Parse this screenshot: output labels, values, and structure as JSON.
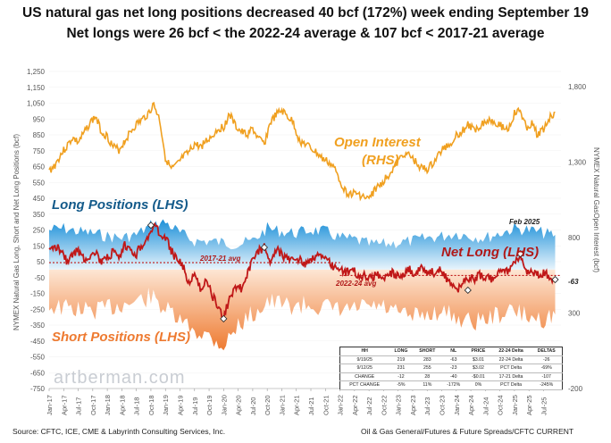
{
  "title": "US natural gas net long positions decreased 40 bcf (172%) week ending September 19",
  "subtitle": "Net longs were 26 bcf < the 2022-24 average & 107 bcf < 2017-21 average",
  "footer": {
    "source": "Source: CFTC, ICE, CME & Labyrinth Consulting Services, Inc.",
    "credit": "Oil & Gas General/Futures & Future Spreads/CFTC CURRENT",
    "watermark": "artberman.com"
  },
  "chart_data": {
    "type": "area",
    "ylabel": "NYMEX Natural Gas Long, Short and Net Long Positions (bcf)",
    "ylabel_right": "NYMEX Natural GasOpen Interest (bcf)",
    "ylim": [
      -750,
      1250
    ],
    "ylim_right": [
      -200,
      1900
    ],
    "yticks": [
      "1,250",
      "1,150",
      "1,050",
      "950",
      "850",
      "750",
      "650",
      "550",
      "450",
      "350",
      "250",
      "150",
      "50",
      "-50",
      "-150",
      "-250",
      "-350",
      "-450",
      "-550",
      "-650",
      "-750"
    ],
    "yticks_right": [
      "1,800",
      "1,300",
      "800",
      "300",
      "-200"
    ],
    "xticks": [
      "Jan-17",
      "Apr-17",
      "Jul-17",
      "Oct-17",
      "Jan-18",
      "Apr-18",
      "Jul-18",
      "Oct-18",
      "Jan-19",
      "Apr-19",
      "Jul-19",
      "Oct-19",
      "Jan-20",
      "Apr-20",
      "Jul-20",
      "Oct-20",
      "Jan-21",
      "Apr-21",
      "Jul-21",
      "Oct-21",
      "Jan-22",
      "Apr-22",
      "Jul-22",
      "Oct-22",
      "Jan-23",
      "Apr-23",
      "Jul-23",
      "Oct-23",
      "Jan-24",
      "Apr-24",
      "Jul-24",
      "Oct-24",
      "Jan-25",
      "Apr-25",
      "Jul-25"
    ],
    "annotations": {
      "open_interest": "Open Interest",
      "rhs": "(RHS)",
      "long_positions": "Long Positions (LHS)",
      "short_positions": "Short Positions (LHS)",
      "net_long": "Net Long (LHS)",
      "avg_2017_21": "2017-21 avg",
      "avg_2022_24": "2022-24 avg",
      "feb_2025": "Feb 2025",
      "last_value": "-63"
    },
    "avg_2017_21_value": 44,
    "avg_2022_24_value": -37,
    "series": [
      {
        "name": "Open Interest",
        "axis": "right",
        "color": "#f0a020",
        "x": [
          2017.0,
          2017.1,
          2017.2,
          2017.3,
          2017.4,
          2017.5,
          2017.6,
          2017.7,
          2017.8,
          2017.9,
          2018.0,
          2018.1,
          2018.2,
          2018.3,
          2018.4,
          2018.5,
          2018.6,
          2018.7,
          2018.8,
          2018.9,
          2019.0,
          2019.1,
          2019.2,
          2019.3,
          2019.4,
          2019.5,
          2019.6,
          2019.7,
          2019.8,
          2019.9,
          2020.0,
          2020.1,
          2020.2,
          2020.3,
          2020.4,
          2020.5,
          2020.6,
          2020.7,
          2020.8,
          2020.9,
          2021.0,
          2021.1,
          2021.2,
          2021.3,
          2021.4,
          2021.5,
          2021.6,
          2021.7,
          2021.8,
          2021.9,
          2022.0,
          2022.1,
          2022.2,
          2022.3,
          2022.4,
          2022.5,
          2022.6,
          2022.7,
          2022.8,
          2022.9,
          2023.0,
          2023.1,
          2023.2,
          2023.3,
          2023.4,
          2023.5,
          2023.6,
          2023.7,
          2023.8,
          2023.9,
          2024.0,
          2024.1,
          2024.2,
          2024.3,
          2024.4,
          2024.5,
          2024.6,
          2024.7,
          2024.8,
          2024.9,
          2025.0,
          2025.1,
          2025.2,
          2025.3,
          2025.4,
          2025.5,
          2025.6,
          2025.7
        ],
        "values": [
          1240,
          1280,
          1350,
          1400,
          1460,
          1430,
          1490,
          1560,
          1600,
          1500,
          1470,
          1400,
          1380,
          1440,
          1500,
          1550,
          1580,
          1620,
          1680,
          1580,
          1330,
          1250,
          1280,
          1330,
          1360,
          1420,
          1400,
          1440,
          1470,
          1520,
          1530,
          1620,
          1540,
          1500,
          1480,
          1520,
          1450,
          1420,
          1560,
          1610,
          1640,
          1600,
          1560,
          1440,
          1420,
          1390,
          1360,
          1320,
          1300,
          1260,
          1180,
          1100,
          1090,
          1090,
          1070,
          1050,
          1120,
          1150,
          1200,
          1250,
          1300,
          1360,
          1340,
          1300,
          1260,
          1250,
          1290,
          1350,
          1400,
          1420,
          1480,
          1500,
          1550,
          1510,
          1540,
          1570,
          1580,
          1560,
          1530,
          1520,
          1620,
          1640,
          1530,
          1550,
          1480,
          1520,
          1590,
          1630
        ]
      },
      {
        "name": "Long Positions",
        "axis": "left",
        "color": "#3aa0dc",
        "x": [
          2017.0,
          2017.25,
          2017.5,
          2017.75,
          2018.0,
          2018.25,
          2018.5,
          2018.75,
          2019.0,
          2019.25,
          2019.5,
          2019.75,
          2020.0,
          2020.25,
          2020.5,
          2020.75,
          2021.0,
          2021.25,
          2021.5,
          2021.75,
          2022.0,
          2022.25,
          2022.5,
          2022.75,
          2023.0,
          2023.25,
          2023.5,
          2023.75,
          2024.0,
          2024.25,
          2024.5,
          2024.75,
          2025.0,
          2025.25,
          2025.5,
          2025.7
        ],
        "values": [
          250,
          260,
          240,
          230,
          210,
          200,
          220,
          280,
          300,
          230,
          180,
          180,
          170,
          160,
          180,
          260,
          240,
          230,
          250,
          240,
          200,
          190,
          160,
          160,
          170,
          180,
          200,
          210,
          230,
          210,
          200,
          230,
          260,
          250,
          230,
          219
        ]
      },
      {
        "name": "Short Positions",
        "axis": "left",
        "color": "#f08040",
        "x": [
          2017.0,
          2017.25,
          2017.5,
          2017.75,
          2018.0,
          2018.25,
          2018.5,
          2018.75,
          2019.0,
          2019.25,
          2019.5,
          2019.75,
          2020.0,
          2020.25,
          2020.5,
          2020.75,
          2021.0,
          2021.25,
          2021.5,
          2021.75,
          2022.0,
          2022.25,
          2022.5,
          2022.75,
          2023.0,
          2023.25,
          2023.5,
          2023.75,
          2024.0,
          2024.25,
          2024.5,
          2024.75,
          2025.0,
          2025.25,
          2025.5,
          2025.7
        ],
        "values": [
          -230,
          -240,
          -250,
          -260,
          -240,
          -220,
          -200,
          -170,
          -250,
          -330,
          -380,
          -420,
          -480,
          -350,
          -280,
          -200,
          -220,
          -230,
          -220,
          -240,
          -260,
          -250,
          -230,
          -240,
          -280,
          -300,
          -280,
          -260,
          -300,
          -330,
          -310,
          -280,
          -260,
          -300,
          -310,
          -283
        ]
      },
      {
        "name": "Net Long",
        "axis": "left",
        "color": "#c01818",
        "x": [
          2017.0,
          2017.1,
          2017.2,
          2017.3,
          2017.4,
          2017.5,
          2017.6,
          2017.7,
          2017.8,
          2017.9,
          2018.0,
          2018.1,
          2018.2,
          2018.3,
          2018.4,
          2018.5,
          2018.6,
          2018.7,
          2018.8,
          2018.9,
          2019.0,
          2019.1,
          2019.2,
          2019.3,
          2019.4,
          2019.5,
          2019.6,
          2019.7,
          2019.8,
          2019.9,
          2020.0,
          2020.1,
          2020.2,
          2020.3,
          2020.4,
          2020.5,
          2020.6,
          2020.7,
          2020.8,
          2020.9,
          2021.0,
          2021.1,
          2021.2,
          2021.3,
          2021.4,
          2021.5,
          2021.6,
          2021.7,
          2021.8,
          2021.9,
          2022.0,
          2022.1,
          2022.2,
          2022.3,
          2022.4,
          2022.5,
          2022.6,
          2022.7,
          2022.8,
          2022.9,
          2023.0,
          2023.1,
          2023.2,
          2023.3,
          2023.4,
          2023.5,
          2023.6,
          2023.7,
          2023.8,
          2023.9,
          2024.0,
          2024.1,
          2024.2,
          2024.3,
          2024.4,
          2024.5,
          2024.6,
          2024.7,
          2024.8,
          2024.9,
          2025.0,
          2025.1,
          2025.2,
          2025.3,
          2025.4,
          2025.5,
          2025.6,
          2025.7
        ],
        "values": [
          110,
          150,
          130,
          60,
          90,
          120,
          70,
          90,
          110,
          40,
          70,
          110,
          60,
          150,
          120,
          100,
          160,
          200,
          280,
          230,
          200,
          120,
          60,
          20,
          -80,
          -40,
          -120,
          -60,
          -160,
          -230,
          -310,
          -180,
          -100,
          -120,
          -40,
          60,
          120,
          140,
          60,
          130,
          100,
          60,
          80,
          60,
          40,
          70,
          90,
          80,
          50,
          20,
          10,
          -20,
          0,
          -30,
          -40,
          -50,
          -40,
          -30,
          -60,
          -20,
          -40,
          -30,
          0,
          -30,
          20,
          -10,
          -20,
          0,
          -40,
          -80,
          -130,
          -90,
          -50,
          -60,
          -30,
          -50,
          -60,
          -30,
          10,
          -20,
          30,
          100,
          -20,
          -10,
          -30,
          -20,
          -40,
          -63
        ]
      }
    ],
    "markers": [
      {
        "x": 2018.75,
        "y": 280
      },
      {
        "x": 2020.0,
        "y": -310
      },
      {
        "x": 2020.7,
        "y": 140
      },
      {
        "x": 2024.2,
        "y": -130
      },
      {
        "x": 2025.1,
        "y": 100
      },
      {
        "x": 2025.7,
        "y": -63
      }
    ]
  },
  "stats_table": {
    "header": [
      "HH",
      "LONG",
      "SHORT",
      "NL",
      "PRICE",
      "22-24 Delta",
      "DELTAS"
    ],
    "rows": [
      [
        "9/19/25",
        "219",
        "283",
        "-63",
        "$3.01",
        "22-24 Delta",
        "-26"
      ],
      [
        "9/12/25",
        "231",
        "255",
        "-23",
        "$3.02",
        "PCT Delta",
        "-69%"
      ],
      [
        "CHANGE",
        "-12",
        "28",
        "-40",
        "-$0.01",
        "17-21 Delta",
        "-107"
      ],
      [
        "PCT CHANGE",
        "-5%",
        "11%",
        "-172%",
        "0%",
        "PCT Delta",
        "-245%"
      ]
    ]
  }
}
